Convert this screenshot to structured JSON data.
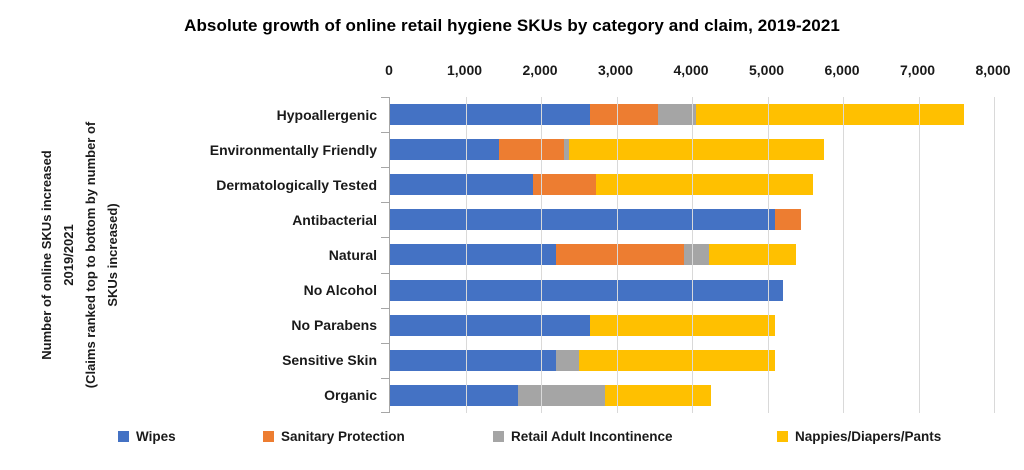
{
  "chart_data": {
    "type": "bar",
    "orientation": "horizontal-stacked",
    "title": "Absolute growth of online retail hygiene SKUs by category and claim, 2019-2021",
    "ylabel": "Number of online SKUs increased\n2019/2021\n(Claims ranked top to bottom by number of\nSKUs increased)",
    "categories": [
      "Hypoallergenic",
      "Environmentally Friendly",
      "Dermatologically Tested",
      "Antibacterial",
      "Natural",
      "No Alcohol",
      "No Parabens",
      "Sensitive Skin",
      "Organic"
    ],
    "series": [
      {
        "name": "Wipes",
        "color": "#4472C4",
        "values": [
          2650,
          1450,
          1900,
          5100,
          2200,
          5200,
          2650,
          2200,
          1700
        ]
      },
      {
        "name": "Sanitary Protection",
        "color": "#ED7D31",
        "values": [
          900,
          850,
          825,
          350,
          1700,
          0,
          0,
          0,
          0
        ]
      },
      {
        "name": "Retail Adult Incontinence",
        "color": "#A5A5A5",
        "values": [
          500,
          75,
          0,
          0,
          325,
          0,
          0,
          300,
          1150
        ]
      },
      {
        "name": "Nappies/Diapers/Pants",
        "color": "#FFC000",
        "values": [
          3550,
          3375,
          2875,
          0,
          1150,
          0,
          2450,
          2600,
          1400
        ]
      }
    ],
    "totals": [
      7600,
      5750,
      5600,
      5450,
      5375,
      5200,
      5100,
      5100,
      4250
    ],
    "xlim": [
      0,
      8000
    ],
    "x_ticks": [
      "0",
      "1,000",
      "2,000",
      "3,000",
      "4,000",
      "5,000",
      "6,000",
      "7,000",
      "8,000"
    ],
    "grid": true,
    "legend_position": "bottom",
    "axis_color": "#a6a6a6",
    "grid_color": "#d9d9d9"
  }
}
